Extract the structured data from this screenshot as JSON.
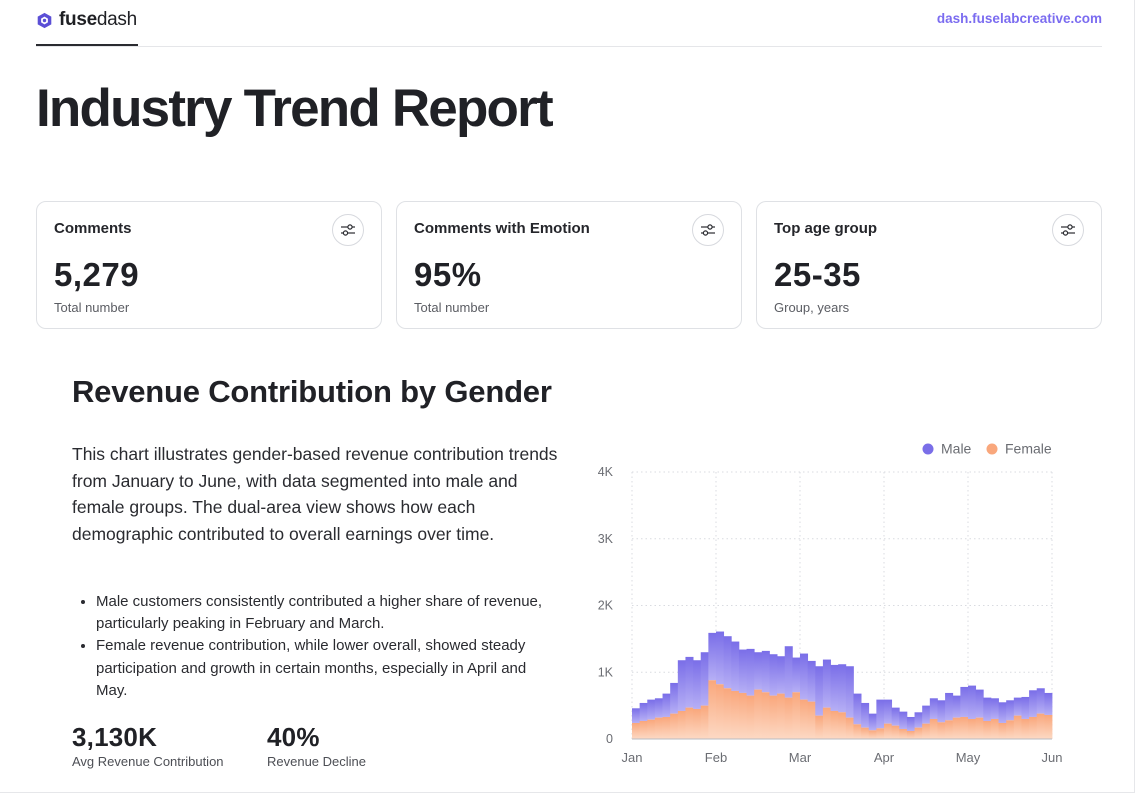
{
  "brand": {
    "name_prefix": "fuse",
    "name_suffix": "dash",
    "site_link": "dash.fuselabcreative.com"
  },
  "title": "Industry Trend Report",
  "cards": [
    {
      "title": "Comments",
      "value": "5,279",
      "sub": "Total number"
    },
    {
      "title": "Comments with Emotion",
      "value": "95%",
      "sub": "Total number"
    },
    {
      "title": "Top age group",
      "value": "25-35",
      "sub": "Group, years"
    }
  ],
  "section": {
    "title": "Revenue Contribution by Gender",
    "description": "This chart illustrates gender-based revenue contribution trends from January to June, with data segmented into male and female groups. The dual-area view shows how each demographic contributed to overall earnings over time.",
    "bullets": [
      "Male customers consistently contributed a higher share of revenue, particularly peaking in February and March.",
      "Female revenue contribution, while lower overall, showed steady participation and growth in certain months, especially in April and May."
    ],
    "stats": [
      {
        "value": "3,130K",
        "label": "Avg Revenue Contribution"
      },
      {
        "value": "40%",
        "label": "Revenue Decline"
      }
    ]
  },
  "colors": {
    "male": "#7a6ee8",
    "male_light": "#b6aff5",
    "female": "#f9a77c",
    "female_light": "#fdd9c4",
    "grid": "#d9dbe0",
    "accent": "#7b6cf0"
  },
  "chart_data": {
    "type": "area",
    "stacked": true,
    "title": "",
    "xlabel": "",
    "ylabel": "",
    "ylim": [
      0,
      4000
    ],
    "yticks": [
      0,
      1000,
      2000,
      3000,
      4000
    ],
    "ytick_labels": [
      "0",
      "1K",
      "2K",
      "3K",
      "4K"
    ],
    "xtick_labels": [
      "Jan",
      "Feb",
      "Mar",
      "Apr",
      "May",
      "Jun"
    ],
    "grid": true,
    "legend_position": "top-right",
    "series": [
      {
        "name": "Female",
        "values": [
          240,
          270,
          290,
          320,
          330,
          380,
          420,
          470,
          450,
          500,
          880,
          820,
          760,
          720,
          690,
          650,
          740,
          700,
          650,
          680,
          620,
          700,
          590,
          560,
          350,
          470,
          420,
          400,
          320,
          220,
          170,
          130,
          160,
          230,
          200,
          150,
          120,
          170,
          230,
          300,
          250,
          280,
          320,
          330,
          300,
          320,
          270,
          300,
          240,
          280,
          350,
          300,
          330,
          380,
          360
        ]
      },
      {
        "name": "Male",
        "values": [
          220,
          270,
          300,
          290,
          350,
          460,
          760,
          760,
          730,
          800,
          710,
          790,
          780,
          740,
          650,
          700,
          560,
          620,
          620,
          560,
          770,
          520,
          690,
          610,
          740,
          720,
          690,
          720,
          770,
          460,
          370,
          250,
          430,
          360,
          270,
          260,
          210,
          230,
          270,
          310,
          330,
          410,
          330,
          450,
          500,
          420,
          350,
          310,
          310,
          300,
          270,
          330,
          400,
          380,
          330
        ]
      }
    ]
  }
}
